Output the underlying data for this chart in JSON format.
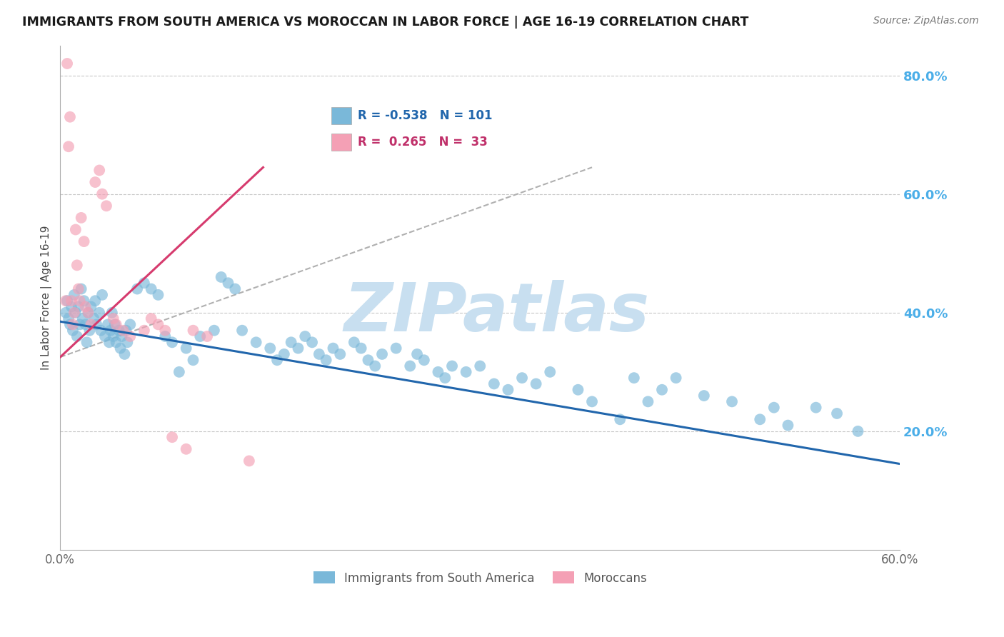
{
  "title": "IMMIGRANTS FROM SOUTH AMERICA VS MOROCCAN IN LABOR FORCE | AGE 16-19 CORRELATION CHART",
  "source": "Source: ZipAtlas.com",
  "ylabel": "In Labor Force | Age 16-19",
  "xlim": [
    0.0,
    0.6
  ],
  "ylim": [
    0.0,
    0.85
  ],
  "xticks": [
    0.0,
    0.1,
    0.2,
    0.3,
    0.4,
    0.5,
    0.6
  ],
  "xticklabels": [
    "0.0%",
    "",
    "",
    "",
    "",
    "",
    "60.0%"
  ],
  "yticks_right": [
    0.2,
    0.4,
    0.6,
    0.8
  ],
  "yticklabels_right": [
    "20.0%",
    "40.0%",
    "60.0%",
    "80.0%"
  ],
  "blue_color": "#7ab8d9",
  "pink_color": "#f4a0b5",
  "blue_line_color": "#2166ac",
  "pink_line_color": "#d63b6e",
  "dashed_line_color": "#b0b0b0",
  "grid_color": "#c8c8c8",
  "watermark": "ZIPatlas",
  "watermark_color": "#c8dff0",
  "legend_R_blue": "-0.538",
  "legend_N_blue": "101",
  "legend_R_pink": "0.265",
  "legend_N_pink": "33",
  "legend_label_blue": "Immigrants from South America",
  "legend_label_pink": "Moroccans",
  "title_color": "#1a1a1a",
  "right_axis_color": "#4baee8",
  "blue_trend_x": [
    0.0,
    0.6
  ],
  "blue_trend_y": [
    0.385,
    0.145
  ],
  "pink_trend_x": [
    0.0,
    0.145
  ],
  "pink_trend_y": [
    0.325,
    0.645
  ],
  "dashed_trend_x": [
    0.0,
    0.38
  ],
  "dashed_trend_y": [
    0.325,
    0.645
  ],
  "blue_scatter_x": [
    0.004,
    0.005,
    0.006,
    0.007,
    0.008,
    0.009,
    0.01,
    0.011,
    0.012,
    0.013,
    0.014,
    0.015,
    0.016,
    0.017,
    0.018,
    0.019,
    0.02,
    0.021,
    0.022,
    0.024,
    0.025,
    0.026,
    0.028,
    0.029,
    0.03,
    0.032,
    0.034,
    0.035,
    0.036,
    0.037,
    0.038,
    0.039,
    0.04,
    0.042,
    0.043,
    0.044,
    0.046,
    0.047,
    0.048,
    0.05,
    0.055,
    0.06,
    0.065,
    0.07,
    0.075,
    0.08,
    0.085,
    0.09,
    0.095,
    0.1,
    0.11,
    0.115,
    0.12,
    0.125,
    0.13,
    0.14,
    0.15,
    0.155,
    0.16,
    0.165,
    0.17,
    0.175,
    0.18,
    0.185,
    0.19,
    0.195,
    0.2,
    0.21,
    0.215,
    0.22,
    0.225,
    0.23,
    0.24,
    0.25,
    0.255,
    0.26,
    0.27,
    0.275,
    0.28,
    0.29,
    0.3,
    0.31,
    0.32,
    0.33,
    0.34,
    0.35,
    0.37,
    0.38,
    0.4,
    0.41,
    0.42,
    0.43,
    0.44,
    0.46,
    0.48,
    0.5,
    0.51,
    0.52,
    0.54,
    0.555,
    0.57
  ],
  "blue_scatter_y": [
    0.4,
    0.42,
    0.39,
    0.38,
    0.41,
    0.37,
    0.43,
    0.4,
    0.36,
    0.41,
    0.38,
    0.44,
    0.39,
    0.42,
    0.38,
    0.35,
    0.4,
    0.37,
    0.41,
    0.39,
    0.42,
    0.38,
    0.4,
    0.37,
    0.43,
    0.36,
    0.38,
    0.35,
    0.37,
    0.4,
    0.36,
    0.38,
    0.35,
    0.37,
    0.34,
    0.36,
    0.33,
    0.37,
    0.35,
    0.38,
    0.44,
    0.45,
    0.44,
    0.43,
    0.36,
    0.35,
    0.3,
    0.34,
    0.32,
    0.36,
    0.37,
    0.46,
    0.45,
    0.44,
    0.37,
    0.35,
    0.34,
    0.32,
    0.33,
    0.35,
    0.34,
    0.36,
    0.35,
    0.33,
    0.32,
    0.34,
    0.33,
    0.35,
    0.34,
    0.32,
    0.31,
    0.33,
    0.34,
    0.31,
    0.33,
    0.32,
    0.3,
    0.29,
    0.31,
    0.3,
    0.31,
    0.28,
    0.27,
    0.29,
    0.28,
    0.3,
    0.27,
    0.25,
    0.22,
    0.29,
    0.25,
    0.27,
    0.29,
    0.26,
    0.25,
    0.22,
    0.24,
    0.21,
    0.24,
    0.23,
    0.2
  ],
  "pink_scatter_x": [
    0.004,
    0.005,
    0.006,
    0.007,
    0.008,
    0.009,
    0.01,
    0.011,
    0.012,
    0.013,
    0.014,
    0.015,
    0.017,
    0.018,
    0.02,
    0.022,
    0.025,
    0.028,
    0.03,
    0.033,
    0.038,
    0.04,
    0.045,
    0.05,
    0.06,
    0.065,
    0.07,
    0.075,
    0.08,
    0.09,
    0.095,
    0.105,
    0.135
  ],
  "pink_scatter_y": [
    0.42,
    0.82,
    0.68,
    0.73,
    0.42,
    0.38,
    0.4,
    0.54,
    0.48,
    0.44,
    0.42,
    0.56,
    0.52,
    0.41,
    0.4,
    0.38,
    0.62,
    0.64,
    0.6,
    0.58,
    0.39,
    0.38,
    0.37,
    0.36,
    0.37,
    0.39,
    0.38,
    0.37,
    0.19,
    0.17,
    0.37,
    0.36,
    0.15
  ]
}
